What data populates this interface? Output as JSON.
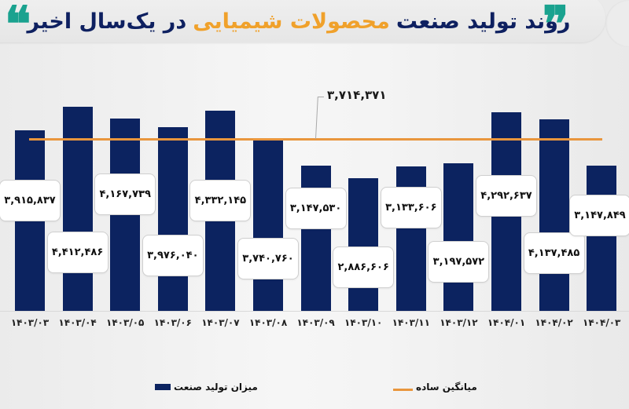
{
  "header": {
    "title_part1": "روند تولید صنعت",
    "title_highlight": "محصولات شیمیایی",
    "title_part2": "در یک‌سال اخیر",
    "quote_open": "❞",
    "quote_close": "❝",
    "colors": {
      "title": "#0e2060",
      "highlight": "#f0a12b",
      "quote": "#1aa28f"
    }
  },
  "legend": {
    "bar_label": "میزان تولید صنعت",
    "line_label": "میانگین ساده"
  },
  "chart_data": {
    "type": "bar",
    "title": "روند تولید صنعت محصولات شیمیایی در یک‌سال اخیر",
    "xlabel": "",
    "ylabel": "",
    "categories": [
      "۱۴۰۳/۰۳",
      "۱۴۰۳/۰۴",
      "۱۴۰۳/۰۵",
      "۱۴۰۳/۰۶",
      "۱۴۰۳/۰۷",
      "۱۴۰۳/۰۸",
      "۱۴۰۳/۰۹",
      "۱۴۰۳/۱۰",
      "۱۴۰۳/۱۱",
      "۱۴۰۳/۱۲",
      "۱۴۰۴/۰۱",
      "۱۴۰۴/۰۲",
      "۱۴۰۴/۰۳"
    ],
    "categories_latin": [
      "1403/03",
      "1403/04",
      "1403/05",
      "1403/06",
      "1403/07",
      "1403/08",
      "1403/09",
      "1403/10",
      "1403/11",
      "1403/12",
      "1404/01",
      "1404/02",
      "1404/03"
    ],
    "series": [
      {
        "name": "میزان تولید صنعت",
        "type": "bar",
        "color": "#0c2360",
        "values": [
          3915837,
          4412486,
          4167739,
          3976040,
          4332145,
          3740760,
          3147530,
          2886606,
          3133606,
          3197572,
          4292637,
          4137485,
          3147849
        ],
        "labels": [
          "۳,۹۱۵,۸۳۷",
          "۴,۴۱۲,۴۸۶",
          "۴,۱۶۷,۷۳۹",
          "۳,۹۷۶,۰۴۰",
          "۴,۳۳۲,۱۴۵",
          "۳,۷۴۰,۷۶۰",
          "۳,۱۴۷,۵۳۰",
          "۲,۸۸۶,۶۰۶",
          "۳,۱۳۳,۶۰۶",
          "۳,۱۹۷,۵۷۲",
          "۴,۲۹۲,۶۳۷",
          "۴,۱۳۷,۴۸۵",
          "۳,۱۴۷,۸۴۹"
        ]
      },
      {
        "name": "میانگین ساده",
        "type": "line",
        "color": "#e9963d",
        "value": 3714371,
        "label": "۳,۷۱۴,۳۷۱"
      }
    ],
    "legend_position": "bottom",
    "grid": false
  }
}
